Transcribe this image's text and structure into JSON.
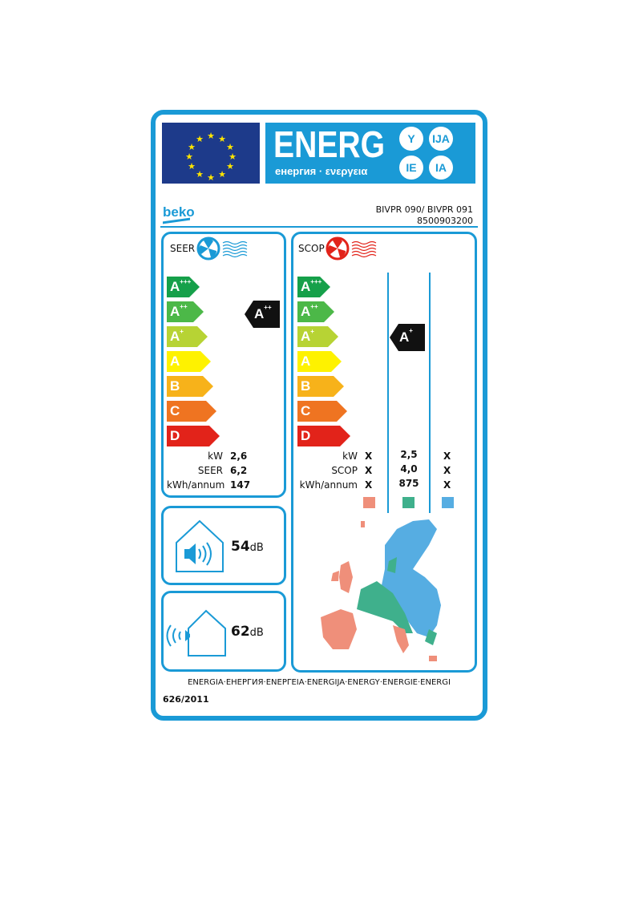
{
  "header": {
    "energ": "ENERG",
    "subtitle": "енергия · ενεργεια",
    "suffixes": [
      "Y",
      "IJA",
      "IE",
      "IA"
    ]
  },
  "brand": "beko",
  "model": {
    "name": "BIVPR 090/ BIVPR 091",
    "code": "8500903200"
  },
  "scale": [
    {
      "label": "A",
      "sup": "+++",
      "color": "#16a04a"
    },
    {
      "label": "A",
      "sup": "++",
      "color": "#4cb848"
    },
    {
      "label": "A",
      "sup": "+",
      "color": "#b7d334"
    },
    {
      "label": "A",
      "sup": "",
      "color": "#fef200"
    },
    {
      "label": "B",
      "sup": "",
      "color": "#f7b21a"
    },
    {
      "label": "C",
      "sup": "",
      "color": "#ef7421"
    },
    {
      "label": "D",
      "sup": "",
      "color": "#e2231a"
    }
  ],
  "cooling": {
    "title": "SEER",
    "class": "A",
    "class_sup": "++",
    "rows": [
      {
        "label": "kW",
        "value": "2,6"
      },
      {
        "label": "SEER",
        "value": "6,2"
      },
      {
        "label": "kWh/annum",
        "value": "147"
      }
    ]
  },
  "heating": {
    "title": "SCOP",
    "class": "A",
    "class_sup": "+",
    "rows": [
      {
        "label": "kW",
        "values": [
          "X",
          "2,5",
          "X"
        ]
      },
      {
        "label": "SCOP",
        "values": [
          "X",
          "4,0",
          "X"
        ]
      },
      {
        "label": "kWh/annum",
        "values": [
          "X",
          "875",
          "X"
        ]
      }
    ],
    "zone_colors": [
      "#ef8f7a",
      "#3fb08c",
      "#56ade2"
    ]
  },
  "noise": {
    "indoor": {
      "value": "54",
      "unit": "dB"
    },
    "outdoor": {
      "value": "62",
      "unit": "dB"
    }
  },
  "footer": {
    "languages": "ENERGIA·ЕНЕРГИЯ·ΕΝΕΡΓΕΙΑ·ENERGIJA·ENERGY·ENERGIE·ENERGI",
    "regulation": "626/2011"
  }
}
